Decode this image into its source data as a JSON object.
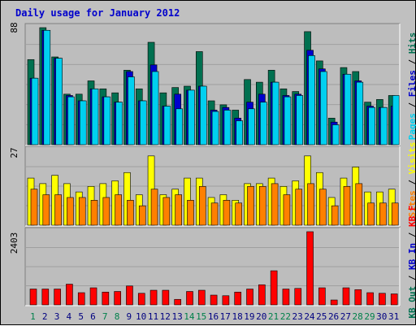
{
  "title": "Daily usage for January 2012",
  "colors": {
    "background": "#c0c0c0",
    "panel": "#bdbdbd",
    "title": "#0000cc",
    "pages": "#00d0f0",
    "files": "#0000cc",
    "hits": "#007050",
    "visits": "#ffff00",
    "sites": "#ff8000",
    "kbytes": "#ff0000",
    "weekend_label": "#00804a",
    "weekday_label": "#000080"
  },
  "chart_data": [
    {
      "type": "bar",
      "panel": "top",
      "title": "Daily usage for January 2012",
      "ytick_max_label": "88",
      "ylim": [
        0,
        88
      ],
      "categories": [
        "1",
        "2",
        "3",
        "4",
        "5",
        "6",
        "7",
        "8",
        "9",
        "10",
        "11",
        "12",
        "13",
        "14",
        "15",
        "16",
        "17",
        "18",
        "19",
        "20",
        "21",
        "22",
        "23",
        "24",
        "25",
        "26",
        "27",
        "28",
        "29",
        "30",
        "31"
      ],
      "weekend_days": [
        "1",
        "7",
        "8",
        "14",
        "15",
        "21",
        "22",
        "28",
        "29"
      ],
      "legend": [
        {
          "label": "Hits",
          "color": "#007050"
        },
        {
          "label": "Files",
          "color": "#0000cc"
        },
        {
          "label": "Pages",
          "color": "#00d0f0"
        }
      ],
      "legend_separator": "/",
      "series": [
        {
          "name": "Hits",
          "values": [
            64,
            88,
            66,
            38,
            38,
            48,
            42,
            39,
            56,
            42,
            77,
            39,
            43,
            44,
            70,
            33,
            30,
            26,
            49,
            47,
            56,
            42,
            40,
            85,
            63,
            20,
            58,
            55,
            32,
            34,
            37
          ]
        },
        {
          "name": "Files",
          "values": [
            50,
            86,
            65,
            37,
            33,
            42,
            36,
            32,
            55,
            33,
            60,
            29,
            38,
            41,
            44,
            26,
            28,
            20,
            32,
            38,
            47,
            37,
            38,
            71,
            57,
            17,
            53,
            48,
            29,
            28,
            29
          ]
        },
        {
          "name": "Pages",
          "values": [
            50,
            86,
            65,
            36,
            33,
            42,
            36,
            32,
            51,
            33,
            55,
            29,
            27,
            41,
            44,
            25,
            26,
            18,
            27,
            32,
            47,
            36,
            37,
            67,
            55,
            15,
            53,
            47,
            28,
            28,
            37
          ]
        }
      ]
    },
    {
      "type": "bar",
      "panel": "middle",
      "ytick_max_label": "27",
      "ylim": [
        0,
        27
      ],
      "categories": [
        "1",
        "2",
        "3",
        "4",
        "5",
        "6",
        "7",
        "8",
        "9",
        "10",
        "11",
        "12",
        "13",
        "14",
        "15",
        "16",
        "17",
        "18",
        "19",
        "20",
        "21",
        "22",
        "23",
        "24",
        "25",
        "26",
        "27",
        "28",
        "29",
        "30",
        "31"
      ],
      "legend": [
        {
          "label": "Visits",
          "color": "#ffff00"
        },
        {
          "label": "Sites",
          "color": "#ff8000"
        }
      ],
      "legend_separator": "/",
      "series": [
        {
          "name": "Visits",
          "values": [
            17,
            15,
            18,
            15,
            12,
            14,
            15,
            16,
            19,
            11,
            25,
            11,
            13,
            17,
            17,
            10,
            11,
            9,
            15,
            15,
            17,
            14,
            16,
            25,
            19,
            10,
            17,
            21,
            12,
            12,
            13
          ]
        },
        {
          "name": "Sites",
          "values": [
            13,
            11,
            11,
            10,
            10,
            9,
            10,
            11,
            9,
            7,
            13,
            10,
            11,
            9,
            14,
            8,
            9,
            8,
            14,
            14,
            15,
            11,
            13,
            15,
            13,
            7,
            14,
            15,
            8,
            8,
            8
          ]
        }
      ]
    },
    {
      "type": "bar",
      "panel": "bottom",
      "ytick_max_label": "2403",
      "ylim": [
        0,
        2403
      ],
      "categories": [
        "1",
        "2",
        "3",
        "4",
        "5",
        "6",
        "7",
        "8",
        "9",
        "10",
        "11",
        "12",
        "13",
        "14",
        "15",
        "16",
        "17",
        "18",
        "19",
        "20",
        "21",
        "22",
        "23",
        "24",
        "25",
        "26",
        "27",
        "28",
        "29",
        "30",
        "31"
      ],
      "legend": [
        {
          "label": "KB F",
          "color": "#ff0000"
        },
        {
          "label": "KB In",
          "color": "#0000cc"
        },
        {
          "label": "KB Out",
          "color": "#007050"
        }
      ],
      "legend_separator": "/",
      "series": [
        {
          "name": "KB F",
          "values": [
            520,
            520,
            520,
            680,
            400,
            560,
            420,
            440,
            620,
            380,
            480,
            480,
            180,
            440,
            480,
            320,
            300,
            420,
            520,
            660,
            1120,
            520,
            540,
            2403,
            560,
            160,
            560,
            500,
            400,
            380,
            360
          ]
        }
      ]
    }
  ]
}
